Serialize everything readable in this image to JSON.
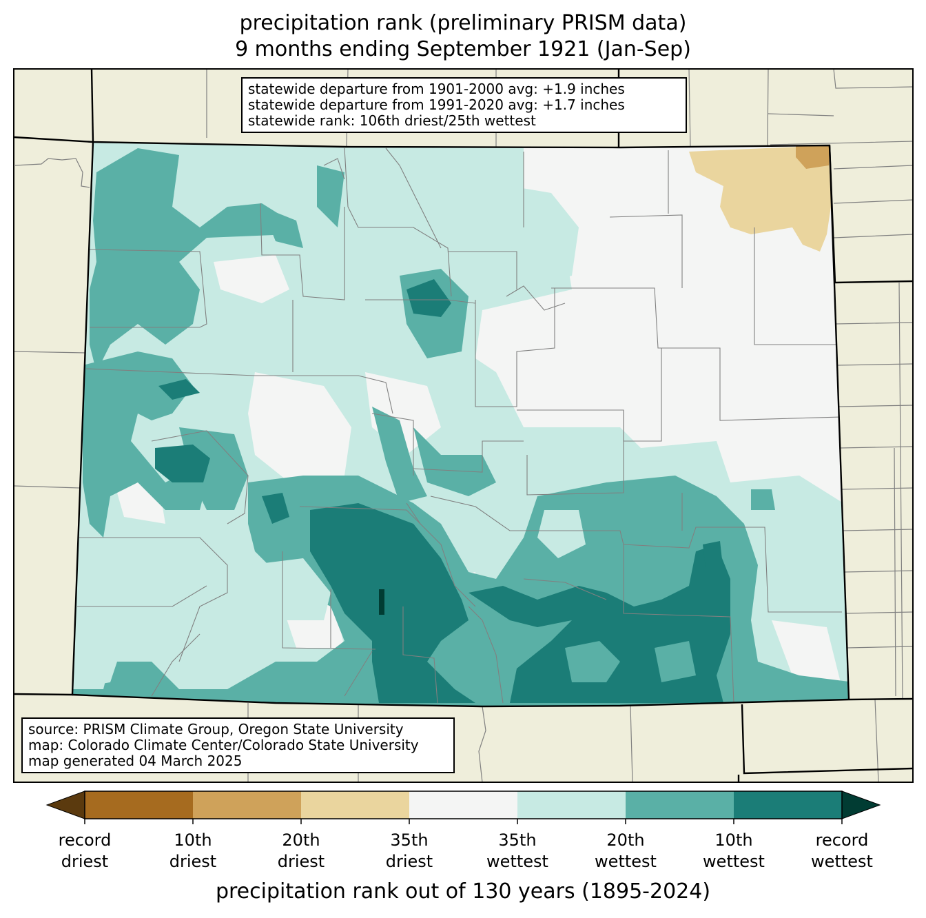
{
  "title_line1": "precipitation rank (preliminary PRISM data)",
  "title_line2": "9 months ending September 1921 (Jan-Sep)",
  "stats_box": [
    "statewide departure from 1901-2000 avg: +1.9 inches",
    "statewide departure from 1991-2020 avg: +1.7 inches",
    "statewide rank: 106th driest/25th wettest"
  ],
  "source_box": [
    "source: PRISM Climate Group, Oregon State University",
    "map: Colorado Climate Center/Colorado State University",
    "map generated 04 March 2025"
  ],
  "colorbar": {
    "title": "precipitation rank out of 130 years (1895-2024)",
    "colors": [
      "#a66b1f",
      "#cfa25a",
      "#ead59e",
      "#f4f5f4",
      "#c7eae3",
      "#5ab0a6",
      "#1b7d77"
    ],
    "extend_low_color": "#5b3a0e",
    "extend_high_color": "#013c33",
    "ticks": [
      {
        "line1": "record",
        "line2": "driest"
      },
      {
        "line1": "10th",
        "line2": "driest"
      },
      {
        "line1": "20th",
        "line2": "driest"
      },
      {
        "line1": "35th",
        "line2": "driest"
      },
      {
        "line1": "35th",
        "line2": "wettest"
      },
      {
        "line1": "20th",
        "line2": "wettest"
      },
      {
        "line1": "10th",
        "line2": "wettest"
      },
      {
        "line1": "record",
        "line2": "wettest"
      }
    ]
  },
  "colors": {
    "land_outside": "#efeedb",
    "state_border": "#000000",
    "county_lines": "#808080"
  }
}
